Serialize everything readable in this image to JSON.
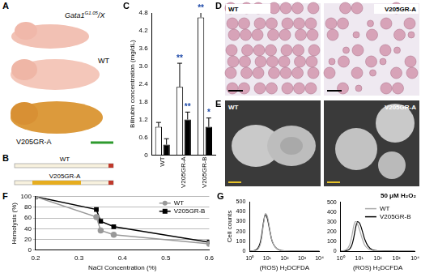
{
  "image_panels": [
    {
      "panel": "A",
      "genotype": {
        "base": "Gata1",
        "sup": "G1.05",
        "rest": "/X"
      },
      "labels": [
        "WT",
        "V205GR-A"
      ]
    },
    {
      "panel": "B",
      "labels": [
        "WT",
        "V205GR-A"
      ]
    },
    {
      "panel": "D",
      "labels": [
        "WT",
        "V205GR-A"
      ]
    },
    {
      "panel": "E",
      "labels": [
        "WT",
        "V205GR-A"
      ]
    }
  ],
  "chart_data": [
    {
      "panel": "C",
      "type": "bar",
      "y_label": "Bilirubin concentration (mg/dL)",
      "categories": [
        "WT",
        "V205GR-A",
        "V205GR-B"
      ],
      "series": [
        {
          "color": "#ffffff",
          "values": [
            0.95,
            2.3,
            4.65
          ],
          "errors": [
            0.15,
            0.8,
            0.3
          ]
        },
        {
          "color": "#000000",
          "values": [
            0.35,
            1.2,
            0.95
          ],
          "errors": [
            0.2,
            0.25,
            0.3
          ]
        }
      ],
      "ylim": [
        0,
        4.8
      ],
      "yticks": [
        0,
        0.6,
        1.2,
        1.8,
        2.4,
        {
          "value": 3,
          "label": "3.0"
        },
        3.6,
        4.2,
        4.8
      ],
      "grid": false,
      "annotations": [
        {
          "category": "V205GR-A",
          "series": 0,
          "text": "**",
          "color": "#1f4aa8"
        },
        {
          "category": "V205GR-A",
          "series": 1,
          "text": "**",
          "color": "#1f4aa8"
        },
        {
          "category": "V205GR-B",
          "series": 0,
          "text": "**",
          "color": "#1f4aa8"
        },
        {
          "category": "V205GR-B",
          "series": 1,
          "text": "*",
          "color": "#1f4aa8"
        }
      ]
    },
    {
      "panel": "F",
      "type": "line",
      "x_label": "NaCl Concentration (%)",
      "y_label": "Hemolysis (%)",
      "x": [
        0.2,
        0.34,
        0.35,
        0.38,
        0.6
      ],
      "series": [
        {
          "name": "WT",
          "color": "#999999",
          "marker": "circle",
          "values": [
            100,
            62,
            37,
            29,
            12
          ]
        },
        {
          "name": "V205GR-B",
          "color": "#000000",
          "marker": "square",
          "values": [
            100,
            76,
            54,
            44,
            15
          ]
        }
      ],
      "xlim": [
        0.2,
        0.6
      ],
      "xticks": [
        0.2,
        0.3,
        0.4,
        0.5,
        0.6
      ],
      "ylim": [
        0,
        100
      ],
      "yticks": [
        0,
        20,
        40,
        60,
        80,
        100
      ],
      "grid": "y",
      "legend": "upper right"
    },
    {
      "panel": "G",
      "type": "line",
      "log": "x",
      "x_label": "(ROS) H₂DCFDA",
      "y_label": "Cell counts",
      "x": [
        1,
        2,
        3,
        4,
        5,
        6,
        7,
        8,
        10,
        12,
        15,
        20,
        30,
        50,
        100,
        1000,
        10000
      ],
      "series": [
        {
          "color": "#aaaaaa",
          "values": [
            0,
            5,
            20,
            60,
            140,
            250,
            330,
            380,
            360,
            300,
            200,
            100,
            40,
            10,
            3,
            0,
            0
          ]
        },
        {
          "color": "#000000",
          "values": [
            0,
            8,
            30,
            80,
            170,
            270,
            340,
            370,
            340,
            280,
            190,
            95,
            40,
            12,
            3,
            0,
            0
          ]
        }
      ],
      "xlim": [
        1,
        10000
      ],
      "xticks": [
        {
          "value": 1,
          "label": "10⁰"
        },
        {
          "value": 10,
          "label": "10¹"
        },
        {
          "value": 100,
          "label": "10²"
        },
        {
          "value": 1000,
          "label": "10³"
        },
        {
          "value": 10000,
          "label": "10⁴"
        }
      ],
      "ylim": [
        0,
        500
      ],
      "yticks": [
        0,
        100,
        200,
        300,
        400,
        500
      ],
      "grid": false
    },
    {
      "type": "line",
      "log": "x",
      "title": "50 μM H₂O₂",
      "x_label": "(ROS) H₂DCFDA",
      "x": [
        1,
        2,
        3,
        4,
        5,
        6,
        7,
        8,
        10,
        12,
        15,
        20,
        30,
        50,
        100,
        1000,
        10000
      ],
      "series": [
        {
          "name": "WT",
          "color": "#aaaaaa",
          "values": [
            0,
            15,
            60,
            150,
            250,
            300,
            300,
            280,
            230,
            180,
            120,
            60,
            25,
            8,
            2,
            0,
            0
          ]
        },
        {
          "name": "V205GR-B",
          "color": "#000000",
          "values": [
            0,
            5,
            20,
            60,
            130,
            210,
            270,
            300,
            290,
            260,
            200,
            120,
            50,
            15,
            4,
            0,
            0
          ]
        }
      ],
      "xlim": [
        1,
        10000
      ],
      "xticks": [
        {
          "value": 1,
          "label": "10⁰"
        },
        {
          "value": 10,
          "label": "10¹"
        },
        {
          "value": 100,
          "label": "10²"
        },
        {
          "value": 1000,
          "label": "10³"
        },
        {
          "value": 10000,
          "label": "10⁴"
        }
      ],
      "ylim": [
        0,
        500
      ],
      "yticks": [
        0,
        100,
        200,
        300,
        400,
        500
      ],
      "grid": false,
      "legend": "upper right"
    }
  ]
}
